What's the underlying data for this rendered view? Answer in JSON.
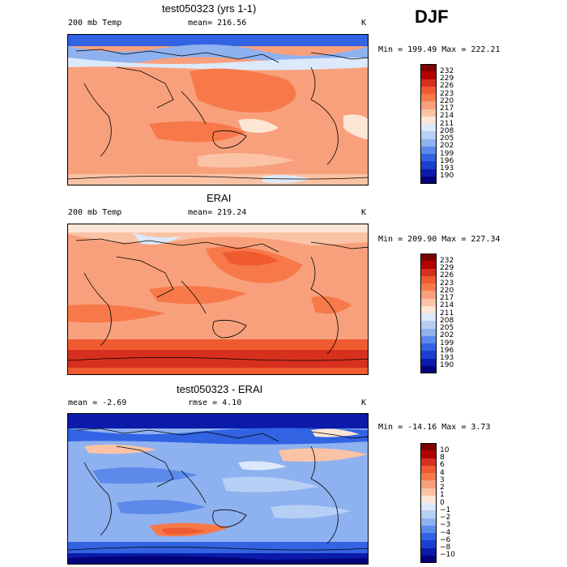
{
  "season": "DJF",
  "panels": [
    {
      "id": "model",
      "title": "test050323 (yrs 1-1)",
      "variable": "200 mb Temp",
      "stats": "mean= 216.56",
      "units": "K",
      "minmax": "Min = 199.49 Max = 222.21",
      "colorbar": {
        "labels": [
          "232",
          "229",
          "226",
          "223",
          "220",
          "217",
          "214",
          "211",
          "208",
          "205",
          "202",
          "199",
          "196",
          "193",
          "190"
        ],
        "colors": [
          "#7f0000",
          "#b30000",
          "#d7301f",
          "#ef5a30",
          "#f7794a",
          "#f8a07c",
          "#fbc3a5",
          "#fde6d6",
          "#dce9fa",
          "#b7cff5",
          "#8eb1f0",
          "#5b8aea",
          "#3163e3",
          "#1a3fd0",
          "#0b1aa8",
          "#02037a"
        ]
      }
    },
    {
      "id": "obs",
      "title": "ERAI",
      "variable": "200 mb Temp",
      "stats": "mean= 219.24",
      "units": "K",
      "minmax": "Min = 209.90 Max = 227.34",
      "colorbar": {
        "labels": [
          "232",
          "229",
          "226",
          "223",
          "220",
          "217",
          "214",
          "211",
          "208",
          "205",
          "202",
          "199",
          "196",
          "193",
          "190"
        ],
        "colors": [
          "#7f0000",
          "#b30000",
          "#d7301f",
          "#ef5a30",
          "#f7794a",
          "#f8a07c",
          "#fbc3a5",
          "#fde6d6",
          "#dce9fa",
          "#b7cff5",
          "#8eb1f0",
          "#5b8aea",
          "#3163e3",
          "#1a3fd0",
          "#0b1aa8",
          "#02037a"
        ]
      }
    },
    {
      "id": "diff",
      "title": "test050323 - ERAI",
      "stats": "mean =   -2.69",
      "rmse": "rmse =    4.10",
      "units": "K",
      "minmax": "Min = -14.16 Max =    3.73",
      "colorbar": {
        "labels": [
          "10",
          "8",
          "6",
          "4",
          "3",
          "2",
          "1",
          "0",
          "−1",
          "−2",
          "−3",
          "−4",
          "−6",
          "−8",
          "−10"
        ],
        "colors": [
          "#7f0000",
          "#b30000",
          "#d7301f",
          "#ef5a30",
          "#f7794a",
          "#f8a07c",
          "#fbc3a5",
          "#fde6d6",
          "#dce9fa",
          "#b7cff5",
          "#8eb1f0",
          "#5b8aea",
          "#3163e3",
          "#1a3fd0",
          "#0b1aa8",
          "#02037a"
        ]
      }
    }
  ]
}
